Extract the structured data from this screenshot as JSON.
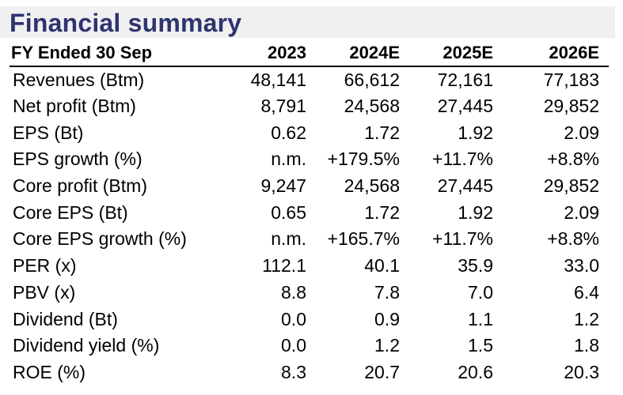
{
  "title": "Financial summary",
  "table": {
    "header": [
      "FY Ended 30 Sep",
      "2023",
      "2024E",
      "2025E",
      "2026E"
    ],
    "rows": [
      [
        "Revenues (Btm)",
        "48,141",
        "66,612",
        "72,161",
        "77,183"
      ],
      [
        "Net profit (Btm)",
        "8,791",
        "24,568",
        "27,445",
        "29,852"
      ],
      [
        "EPS (Bt)",
        "0.62",
        "1.72",
        "1.92",
        "2.09"
      ],
      [
        "EPS growth (%)",
        "n.m.",
        "+179.5%",
        "+11.7%",
        "+8.8%"
      ],
      [
        "Core profit (Btm)",
        "9,247",
        "24,568",
        "27,445",
        "29,852"
      ],
      [
        "Core EPS (Bt)",
        "0.65",
        "1.72",
        "1.92",
        "2.09"
      ],
      [
        "Core EPS growth (%)",
        "n.m.",
        "+165.7%",
        "+11.7%",
        "+8.8%"
      ],
      [
        "PER (x)",
        "112.1",
        "40.1",
        "35.9",
        "33.0"
      ],
      [
        "PBV (x)",
        "8.8",
        "7.8",
        "7.0",
        "6.4"
      ],
      [
        "Dividend (Bt)",
        "0.0",
        "0.9",
        "1.1",
        "1.2"
      ],
      [
        "Dividend yield (%)",
        "0.0",
        "1.2",
        "1.5",
        "1.8"
      ],
      [
        "ROE (%)",
        "8.3",
        "20.7",
        "20.6",
        "20.3"
      ]
    ]
  }
}
